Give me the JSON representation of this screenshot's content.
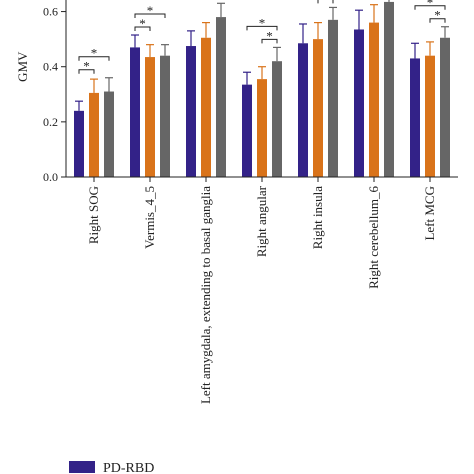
{
  "chart_data": {
    "type": "bar",
    "ylabel": "GMV",
    "ylim": [
      0,
      0.7
    ],
    "yticks": [
      "0.0",
      "0.2",
      "0.4",
      "0.6"
    ],
    "categories": [
      "Right SOG",
      "Vermis_4_5",
      "Left amygdala, extending to basal ganglia",
      "Right angular",
      "Right insula",
      "Right cerebellum_6",
      "Left MCG"
    ],
    "series": [
      {
        "name": "PD-RBD",
        "color": "#332288",
        "values": [
          0.24,
          0.47,
          0.475,
          0.335,
          0.485,
          0.535,
          0.43
        ],
        "errors": [
          0.035,
          0.045,
          0.055,
          0.045,
          0.07,
          0.07,
          0.055
        ]
      },
      {
        "color": "#d9731a",
        "values": [
          0.305,
          0.435,
          0.505,
          0.355,
          0.5,
          0.56,
          0.44
        ],
        "errors": [
          0.05,
          0.045,
          0.055,
          0.045,
          0.06,
          0.065,
          0.05
        ]
      },
      {
        "color": "#666666",
        "values": [
          0.31,
          0.44,
          0.58,
          0.42,
          0.57,
          0.635,
          0.505
        ],
        "errors": [
          0.05,
          0.04,
          0.05,
          0.05,
          0.045,
          0.065,
          0.04
        ]
      }
    ],
    "significance": [
      {
        "category": 0,
        "from": 0,
        "to": 1,
        "level": 0,
        "label": "*"
      },
      {
        "category": 0,
        "from": 0,
        "to": 2,
        "level": 1,
        "label": "*"
      },
      {
        "category": 1,
        "from": 0,
        "to": 1,
        "level": 0,
        "label": "*"
      },
      {
        "category": 1,
        "from": 0,
        "to": 2,
        "level": 1,
        "label": "*"
      },
      {
        "category": 2,
        "from": 1,
        "to": 2,
        "level": 0,
        "label": "*"
      },
      {
        "category": 3,
        "from": 1,
        "to": 2,
        "level": 0,
        "label": "*"
      },
      {
        "category": 3,
        "from": 0,
        "to": 2,
        "level": 1,
        "label": "*"
      },
      {
        "category": 4,
        "from": 1,
        "to": 2,
        "level": 0,
        "label": "*"
      },
      {
        "category": 6,
        "from": 1,
        "to": 2,
        "level": 0,
        "label": "*"
      },
      {
        "category": 6,
        "from": 0,
        "to": 2,
        "level": 1,
        "label": "*"
      }
    ]
  }
}
